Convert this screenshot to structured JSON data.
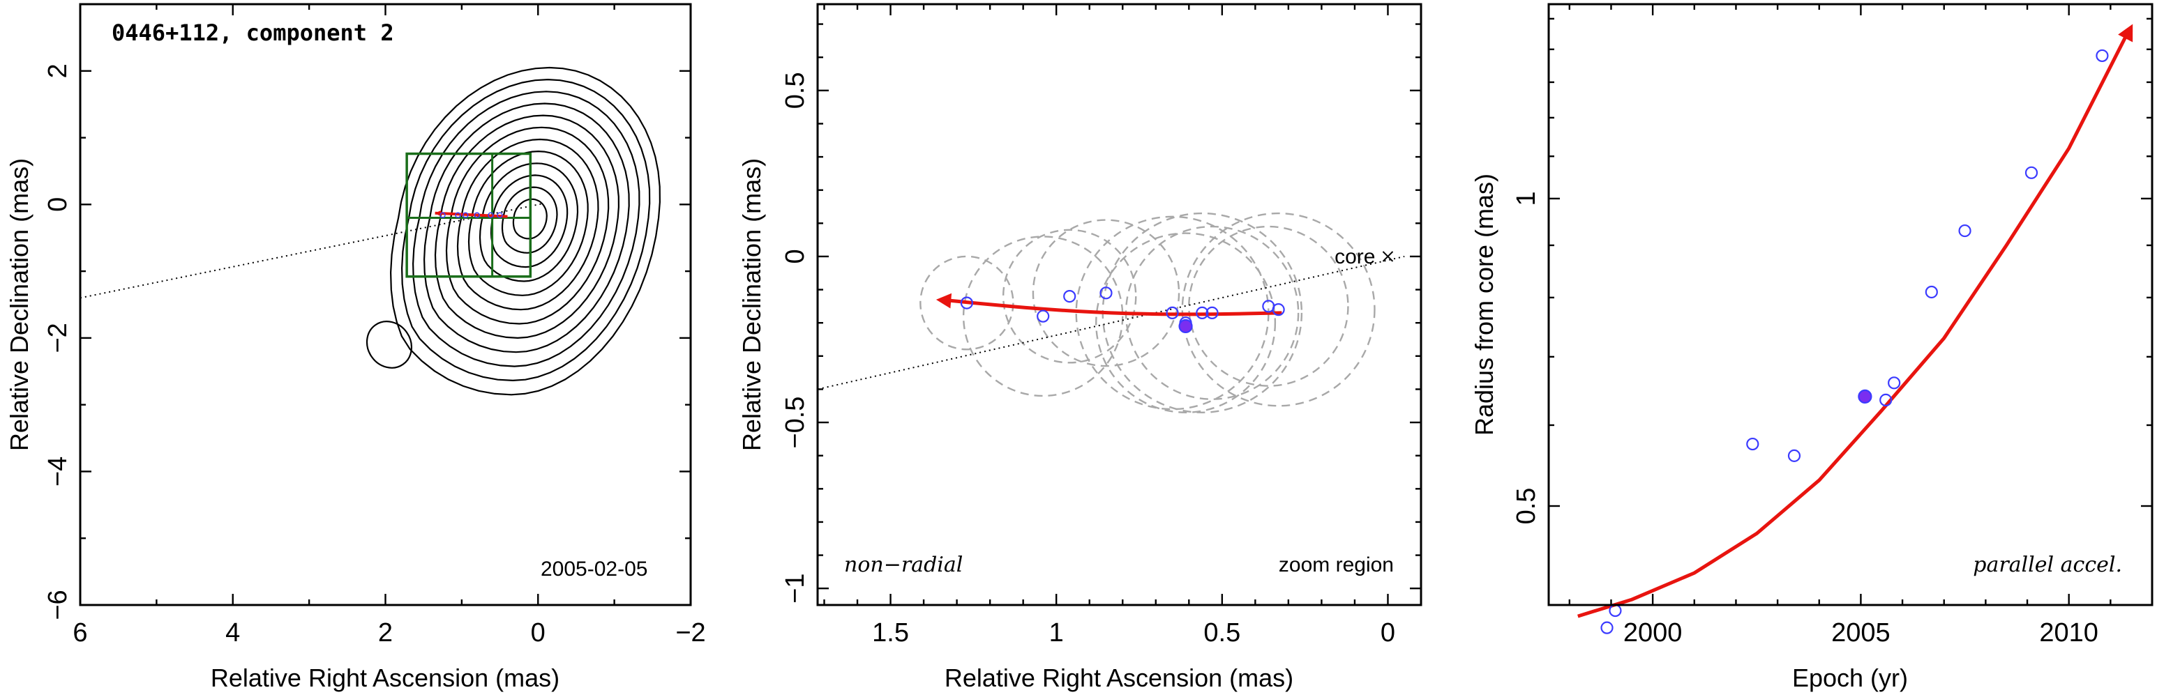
{
  "chart_data": [
    {
      "type": "contour",
      "title": "0446+112, component 2",
      "date_label": "2005-02-05",
      "xlabel": "Relative Right Ascension (mas)",
      "ylabel": "Relative Declination (mas)",
      "xlim": [
        6,
        -2
      ],
      "ylim": [
        -6,
        3
      ],
      "xticks": [
        6,
        4,
        2,
        0,
        -2
      ],
      "yticks": [
        2,
        0,
        -2,
        -4,
        -6
      ],
      "xtick_labels": [
        "6",
        "4",
        "2",
        "0",
        "−2"
      ],
      "ytick_labels": [
        "2",
        "0",
        "−2",
        "−4",
        "−6"
      ],
      "contour_center": [
        0.1,
        -0.2
      ],
      "contour_count": 12,
      "small_contour_center": [
        1.95,
        -2.1
      ],
      "zoom_box": {
        "x": [
          1.72,
          0.1
        ],
        "y": [
          -1.08,
          0.76
        ]
      },
      "core_axis_line": {
        "x": [
          6,
          -0.05
        ],
        "y": [
          -1.4,
          0.01
        ]
      },
      "track": {
        "x": [
          1.35,
          0.4
        ],
        "y": [
          -0.13,
          -0.18
        ]
      }
    },
    {
      "type": "scatter",
      "xlabel": "Relative Right Ascension (mas)",
      "ylabel": "Relative Declination (mas)",
      "xlim": [
        1.72,
        -0.1
      ],
      "ylim": [
        -1.05,
        0.76
      ],
      "xticks": [
        1.5,
        1,
        0.5,
        0
      ],
      "xtick_labels": [
        "1.5",
        "1",
        "0.5",
        "0"
      ],
      "yticks": [
        0.5,
        0,
        -0.5,
        -1
      ],
      "ytick_labels": [
        "0.5",
        "0",
        "−0.5",
        "−1"
      ],
      "annotations": {
        "core": "core",
        "left": "non−radial",
        "right": "zoom region"
      },
      "core_position": [
        0.0,
        0.0
      ],
      "points": [
        {
          "x": 1.27,
          "y": -0.14,
          "filled": false
        },
        {
          "x": 1.04,
          "y": -0.18,
          "filled": false
        },
        {
          "x": 0.96,
          "y": -0.12,
          "filled": false
        },
        {
          "x": 0.85,
          "y": -0.11,
          "filled": false
        },
        {
          "x": 0.65,
          "y": -0.17,
          "filled": false
        },
        {
          "x": 0.61,
          "y": -0.2,
          "filled": false
        },
        {
          "x": 0.61,
          "y": -0.21,
          "filled": true
        },
        {
          "x": 0.56,
          "y": -0.17,
          "filled": false
        },
        {
          "x": 0.53,
          "y": -0.17,
          "filled": false
        },
        {
          "x": 0.36,
          "y": -0.15,
          "filled": false
        },
        {
          "x": 0.33,
          "y": -0.16,
          "filled": false
        }
      ],
      "circles": [
        {
          "x": 1.27,
          "y": -0.14,
          "r": 0.14
        },
        {
          "x": 1.04,
          "y": -0.18,
          "r": 0.24
        },
        {
          "x": 0.96,
          "y": -0.12,
          "r": 0.2
        },
        {
          "x": 0.85,
          "y": -0.11,
          "r": 0.22
        },
        {
          "x": 0.65,
          "y": -0.17,
          "r": 0.29
        },
        {
          "x": 0.61,
          "y": -0.2,
          "r": 0.27
        },
        {
          "x": 0.56,
          "y": -0.17,
          "r": 0.3
        },
        {
          "x": 0.53,
          "y": -0.17,
          "r": 0.26
        },
        {
          "x": 0.36,
          "y": -0.15,
          "r": 0.24
        },
        {
          "x": 0.33,
          "y": -0.16,
          "r": 0.29
        }
      ],
      "core_axis_line": {
        "x": [
          1.72,
          -0.05
        ],
        "y": [
          -0.4,
          0.0
        ]
      },
      "track": {
        "x": [
          1.35,
          0.32
        ],
        "y": [
          -0.13,
          -0.17
        ]
      }
    },
    {
      "type": "scatter",
      "xlabel": "Epoch (yr)",
      "ylabel": "Radius from core (mas)",
      "annotation": "parallel accel.",
      "xlim": [
        1997.5,
        2012
      ],
      "ylim_log": [
        0.4,
        1.55
      ],
      "xticks": [
        2000,
        2005,
        2010
      ],
      "xtick_labels": [
        "2000",
        "2005",
        "2010"
      ],
      "yticks": [
        0.5,
        1
      ],
      "ytick_labels": [
        "0.5",
        "1"
      ],
      "points": [
        {
          "x": 1998.9,
          "y": 0.38,
          "filled": false
        },
        {
          "x": 1999.1,
          "y": 0.395,
          "filled": false
        },
        {
          "x": 2002.4,
          "y": 0.575,
          "filled": false
        },
        {
          "x": 2003.4,
          "y": 0.56,
          "filled": false
        },
        {
          "x": 2005.1,
          "y": 0.64,
          "filled": true
        },
        {
          "x": 2005.6,
          "y": 0.635,
          "filled": false
        },
        {
          "x": 2005.8,
          "y": 0.66,
          "filled": false
        },
        {
          "x": 2006.7,
          "y": 0.81,
          "filled": false
        },
        {
          "x": 2007.5,
          "y": 0.93,
          "filled": false
        },
        {
          "x": 2009.1,
          "y": 1.06,
          "filled": false
        },
        {
          "x": 2010.8,
          "y": 1.38,
          "filled": false
        }
      ],
      "fit_curve": {
        "x": [
          1998.2,
          1999.5,
          2001,
          2002.5,
          2004,
          2005.5,
          2007,
          2008.5,
          2010,
          2011.4
        ],
        "y": [
          0.39,
          0.405,
          0.43,
          0.47,
          0.53,
          0.62,
          0.73,
          0.9,
          1.12,
          1.45
        ]
      }
    }
  ]
}
